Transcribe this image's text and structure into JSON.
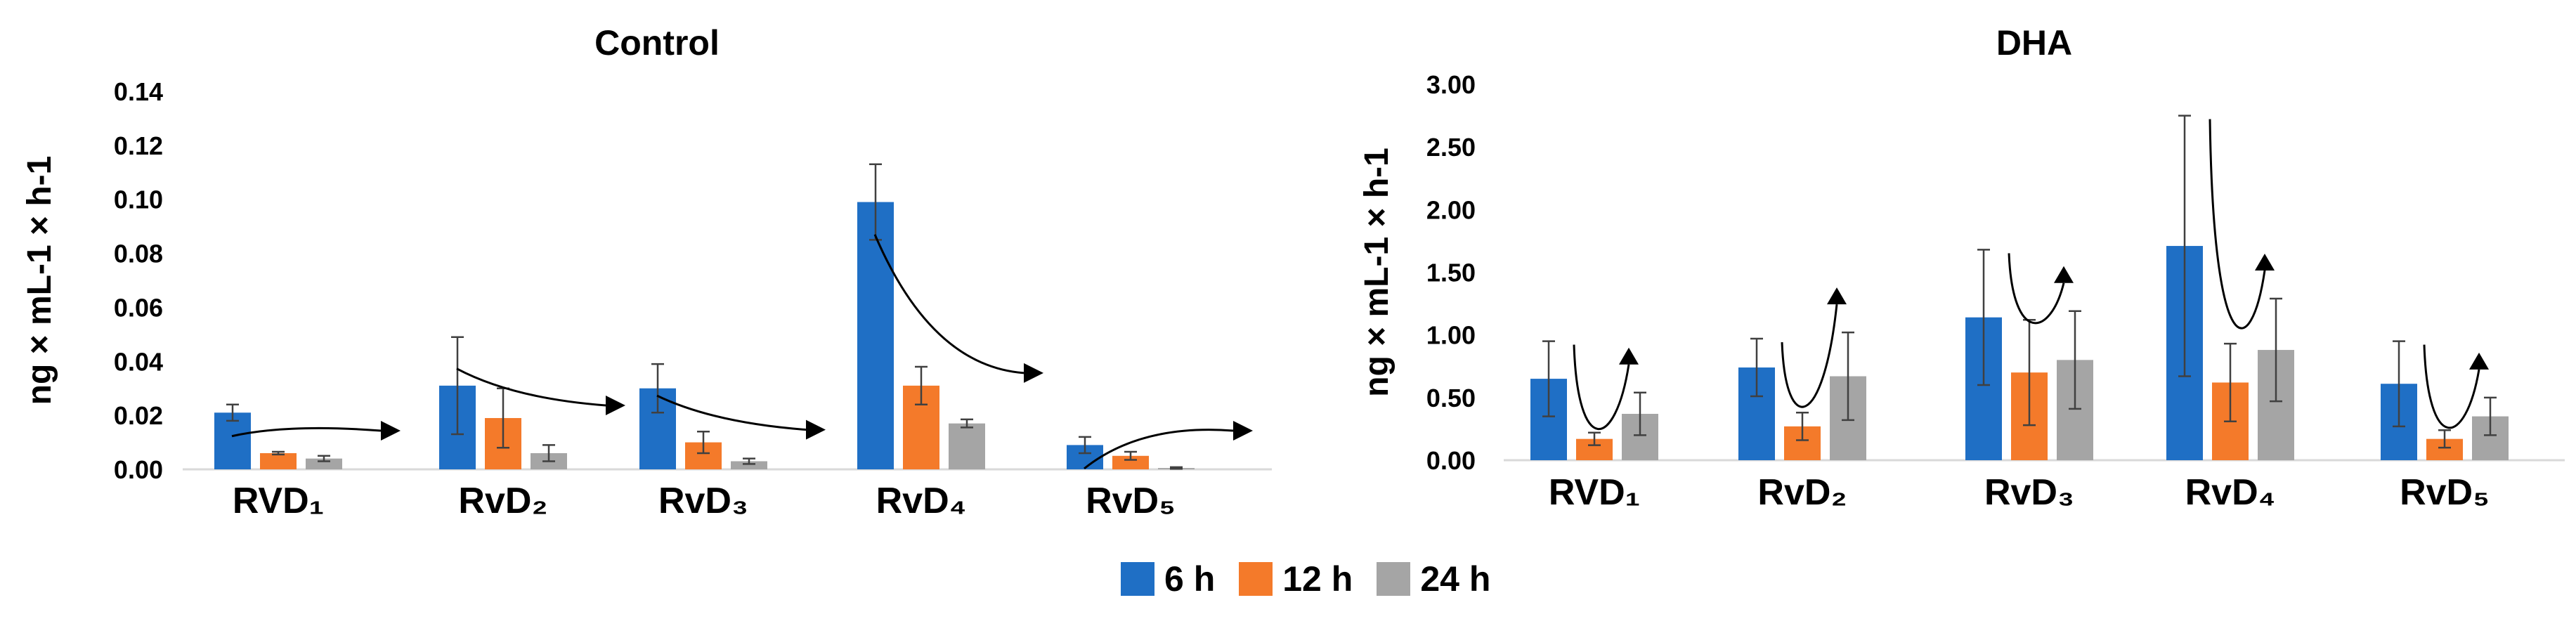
{
  "chart_data": [
    {
      "type": "bar",
      "title": "Control",
      "ylabel": "ng × mL-1 × h-1",
      "ylim": [
        0,
        0.14
      ],
      "yticks": [
        "0.00",
        "0.02",
        "0.04",
        "0.06",
        "0.08",
        "0.10",
        "0.12",
        "0.14"
      ],
      "categories": [
        "RVD₁",
        "RvD₂",
        "RvD₃",
        "RvD₄",
        "RvD₅"
      ],
      "trend_direction": "down",
      "series": [
        {
          "name": "6 h",
          "color": "#1f6fc5",
          "values": [
            0.021,
            0.031,
            0.03,
            0.099,
            0.009
          ],
          "errors": [
            0.003,
            0.018,
            0.009,
            0.014,
            0.003
          ]
        },
        {
          "name": "12 h",
          "color": "#f47a2a",
          "values": [
            0.006,
            0.019,
            0.01,
            0.031,
            0.005
          ],
          "errors": [
            0.0005,
            0.011,
            0.004,
            0.007,
            0.0015
          ]
        },
        {
          "name": "24 h",
          "color": "#a5a5a5",
          "values": [
            0.004,
            0.006,
            0.003,
            0.017,
            0.0005
          ],
          "errors": [
            0.001,
            0.003,
            0.001,
            0.0015,
            0.0003
          ]
        }
      ]
    },
    {
      "type": "bar",
      "title": "DHA",
      "ylabel": "ng × mL-1 × h-1",
      "ylim": [
        0,
        3.0
      ],
      "yticks": [
        "0.00",
        "0.50",
        "1.00",
        "1.50",
        "2.00",
        "2.50",
        "3.00"
      ],
      "categories": [
        "RVD₁",
        "RvD₂",
        "RvD₃",
        "RvD₄",
        "RvD₅"
      ],
      "trend_direction": "up",
      "series": [
        {
          "name": "6 h",
          "color": "#1f6fc5",
          "values": [
            0.65,
            0.74,
            1.14,
            1.71,
            0.61
          ],
          "errors": [
            0.3,
            0.23,
            0.54,
            1.04,
            0.34
          ]
        },
        {
          "name": "12 h",
          "color": "#f47a2a",
          "values": [
            0.17,
            0.27,
            0.7,
            0.62,
            0.17
          ],
          "errors": [
            0.05,
            0.11,
            0.42,
            0.31,
            0.07
          ]
        },
        {
          "name": "24 h",
          "color": "#a5a5a5",
          "values": [
            0.37,
            0.67,
            0.8,
            0.88,
            0.35
          ],
          "errors": [
            0.17,
            0.35,
            0.39,
            0.41,
            0.15
          ]
        }
      ]
    }
  ],
  "legend": {
    "items": [
      {
        "label": "6 h",
        "color": "#1f6fc5"
      },
      {
        "label": "12 h",
        "color": "#f47a2a"
      },
      {
        "label": "24 h",
        "color": "#a5a5a5"
      }
    ]
  }
}
